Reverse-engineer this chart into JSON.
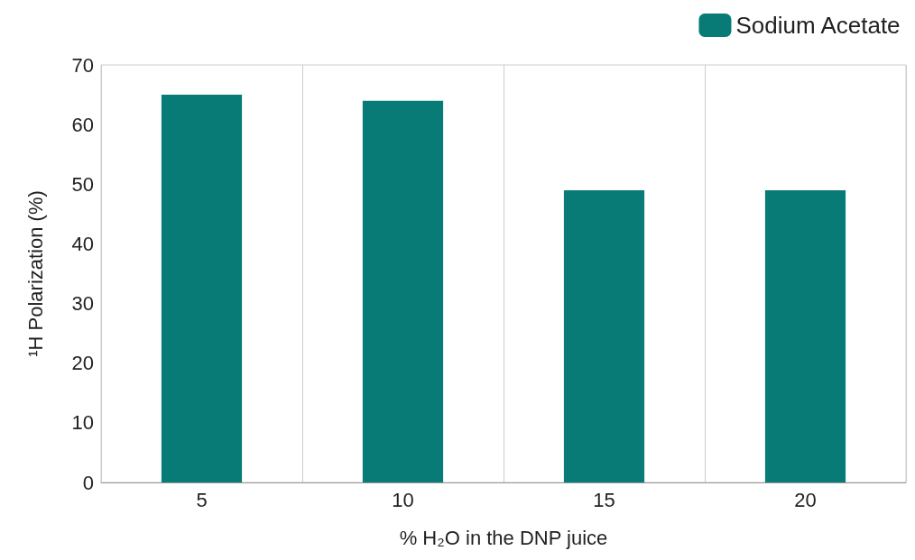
{
  "chart_data": {
    "type": "bar",
    "xlabel": "% H₂O in the DNP juice",
    "ylabel": "¹H Polarization (%)",
    "categories": [
      "5",
      "10",
      "15",
      "20"
    ],
    "series": [
      {
        "name": "Sodium Acetate",
        "color": "#087b77",
        "values": [
          65,
          64,
          49,
          49
        ]
      }
    ],
    "ylim": [
      0,
      70
    ],
    "yticks": [
      0,
      10,
      20,
      30,
      40,
      50,
      60,
      70
    ],
    "grid": "x",
    "legend": "top right"
  }
}
